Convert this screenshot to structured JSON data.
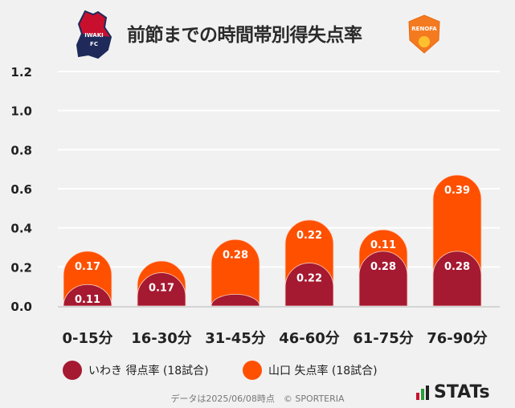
{
  "header": {
    "title": "前節までの時間帯別得失点率",
    "home_logo_text": "IWAKI FC",
    "away_logo_text": "RENOFA"
  },
  "chart_data": {
    "type": "bar",
    "stacked": true,
    "categories": [
      "0-15分",
      "16-30分",
      "31-45分",
      "46-60分",
      "61-75分",
      "76-90分"
    ],
    "series": [
      {
        "name": "いわき 得点率 (18試合)",
        "color": "#a51931",
        "values": [
          0.11,
          0.17,
          0.06,
          0.22,
          0.28,
          0.28
        ],
        "labels": [
          "0.11",
          "0.17",
          null,
          "0.22",
          "0.28",
          "0.28"
        ]
      },
      {
        "name": "山口 失点率 (18試合)",
        "color": "#ff5000",
        "values": [
          0.17,
          0.06,
          0.28,
          0.22,
          0.11,
          0.39
        ],
        "labels": [
          "0.17",
          null,
          "0.28",
          "0.22",
          "0.11",
          "0.39"
        ]
      }
    ],
    "yticks": [
      "0.0",
      "0.2",
      "0.4",
      "0.6",
      "0.8",
      "1.0",
      "1.2"
    ],
    "ylim": [
      0,
      1.2
    ],
    "grid": true,
    "legend": "bottom"
  },
  "footer": {
    "note": "データは2025/06/08時点　© SPORTERIA",
    "brand": "STATs"
  }
}
